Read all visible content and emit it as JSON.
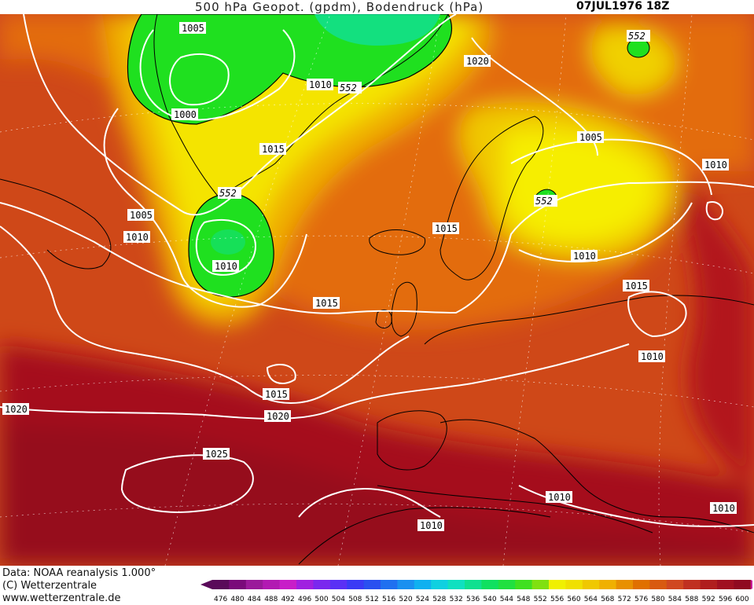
{
  "header": {
    "title": "500 hPa Geopot. (gpdm), Bodendruck (hPa)",
    "date": "07JUL1976 18Z"
  },
  "footer": {
    "line1": "Data: NOAA reanalysis 1.000°",
    "line2": "(C) Wetterzentrale",
    "line3": "www.wetterzentrale.de"
  },
  "legend": {
    "values": [
      "476",
      "480",
      "484",
      "488",
      "492",
      "496",
      "500",
      "504",
      "508",
      "512",
      "516",
      "520",
      "524",
      "528",
      "532",
      "536",
      "540",
      "544",
      "548",
      "552",
      "556",
      "560",
      "564",
      "568",
      "572",
      "576",
      "580",
      "584",
      "588",
      "592",
      "596",
      "600"
    ],
    "colors": [
      "#5a0a5a",
      "#7a0a7a",
      "#9a1a9a",
      "#b21ab2",
      "#c81ec8",
      "#a020e0",
      "#7a28ee",
      "#5a30f5",
      "#3a3af5",
      "#2a50f0",
      "#2070f0",
      "#1a90f0",
      "#10b0f0",
      "#10d0e0",
      "#10e0c0",
      "#10e090",
      "#10e060",
      "#20e040",
      "#40e020",
      "#80e010",
      "#f0f000",
      "#f0e000",
      "#f0c800",
      "#f0b000",
      "#e89000",
      "#e07000",
      "#d85a10",
      "#d04820",
      "#c03020",
      "#b01e1e",
      "#a01020",
      "#900a20"
    ],
    "arrow_left": "#5a0a5a",
    "arrow_right": "#cc1f9a"
  },
  "isobars": {
    "labels": [
      "1005",
      "1000",
      "1010",
      "552",
      "1020",
      "552",
      "1015",
      "552",
      "1005",
      "1010",
      "1010",
      "1005",
      "1010",
      "552",
      "1015",
      "1015",
      "1010",
      "1015",
      "1010",
      "1015",
      "1020",
      "1020",
      "1025",
      "1010",
      "1010",
      "1010"
    ]
  },
  "map_colors": {
    "ocean_base": "#d55018",
    "green_low": "#1ee01e",
    "yellow": "#f4ec00",
    "orange": "#e89000",
    "red_high": "#a80d1e"
  }
}
